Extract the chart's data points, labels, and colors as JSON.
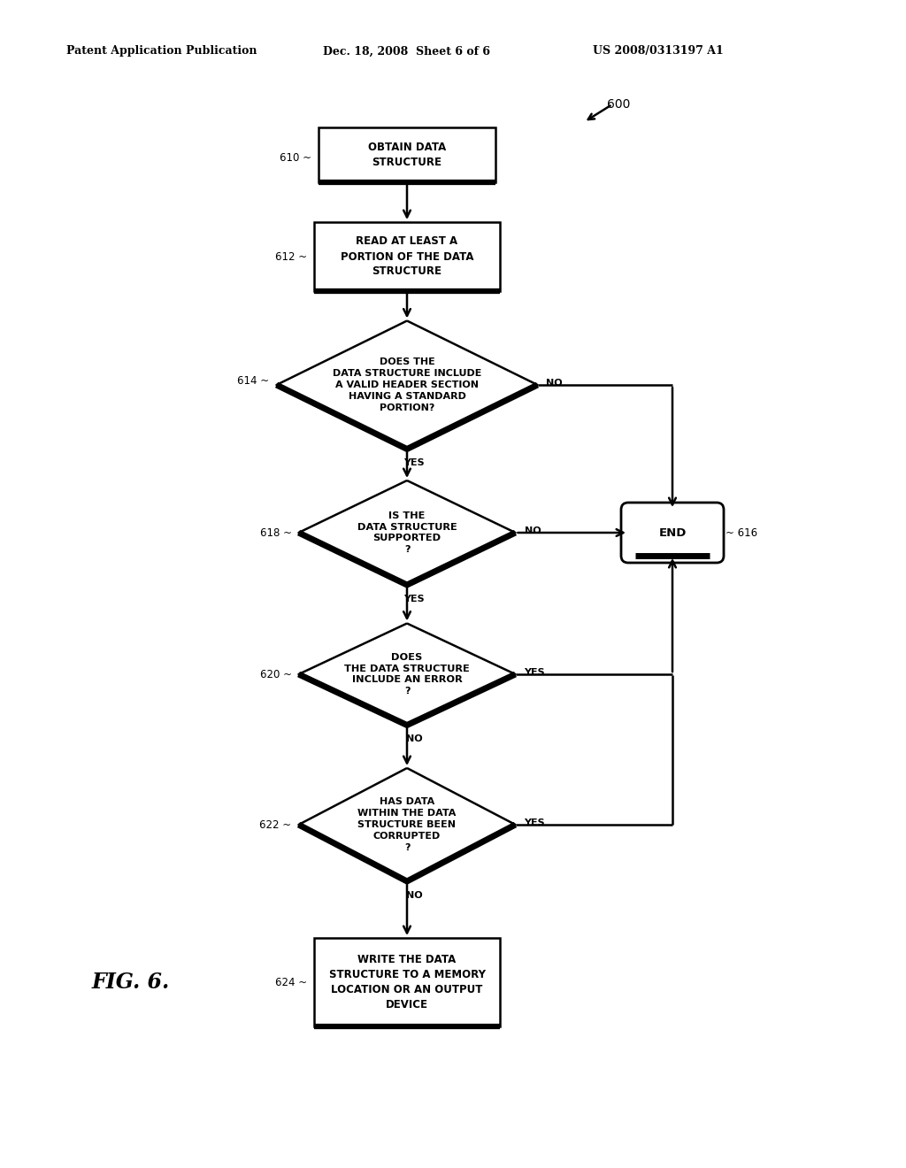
{
  "bg_color": "#ffffff",
  "header_left": "Patent Application Publication",
  "header_mid": "Dec. 18, 2008  Sheet 6 of 6",
  "header_right": "US 2008/0313197 A1",
  "fig_label": "FIG. 6.",
  "diagram_number": "600"
}
